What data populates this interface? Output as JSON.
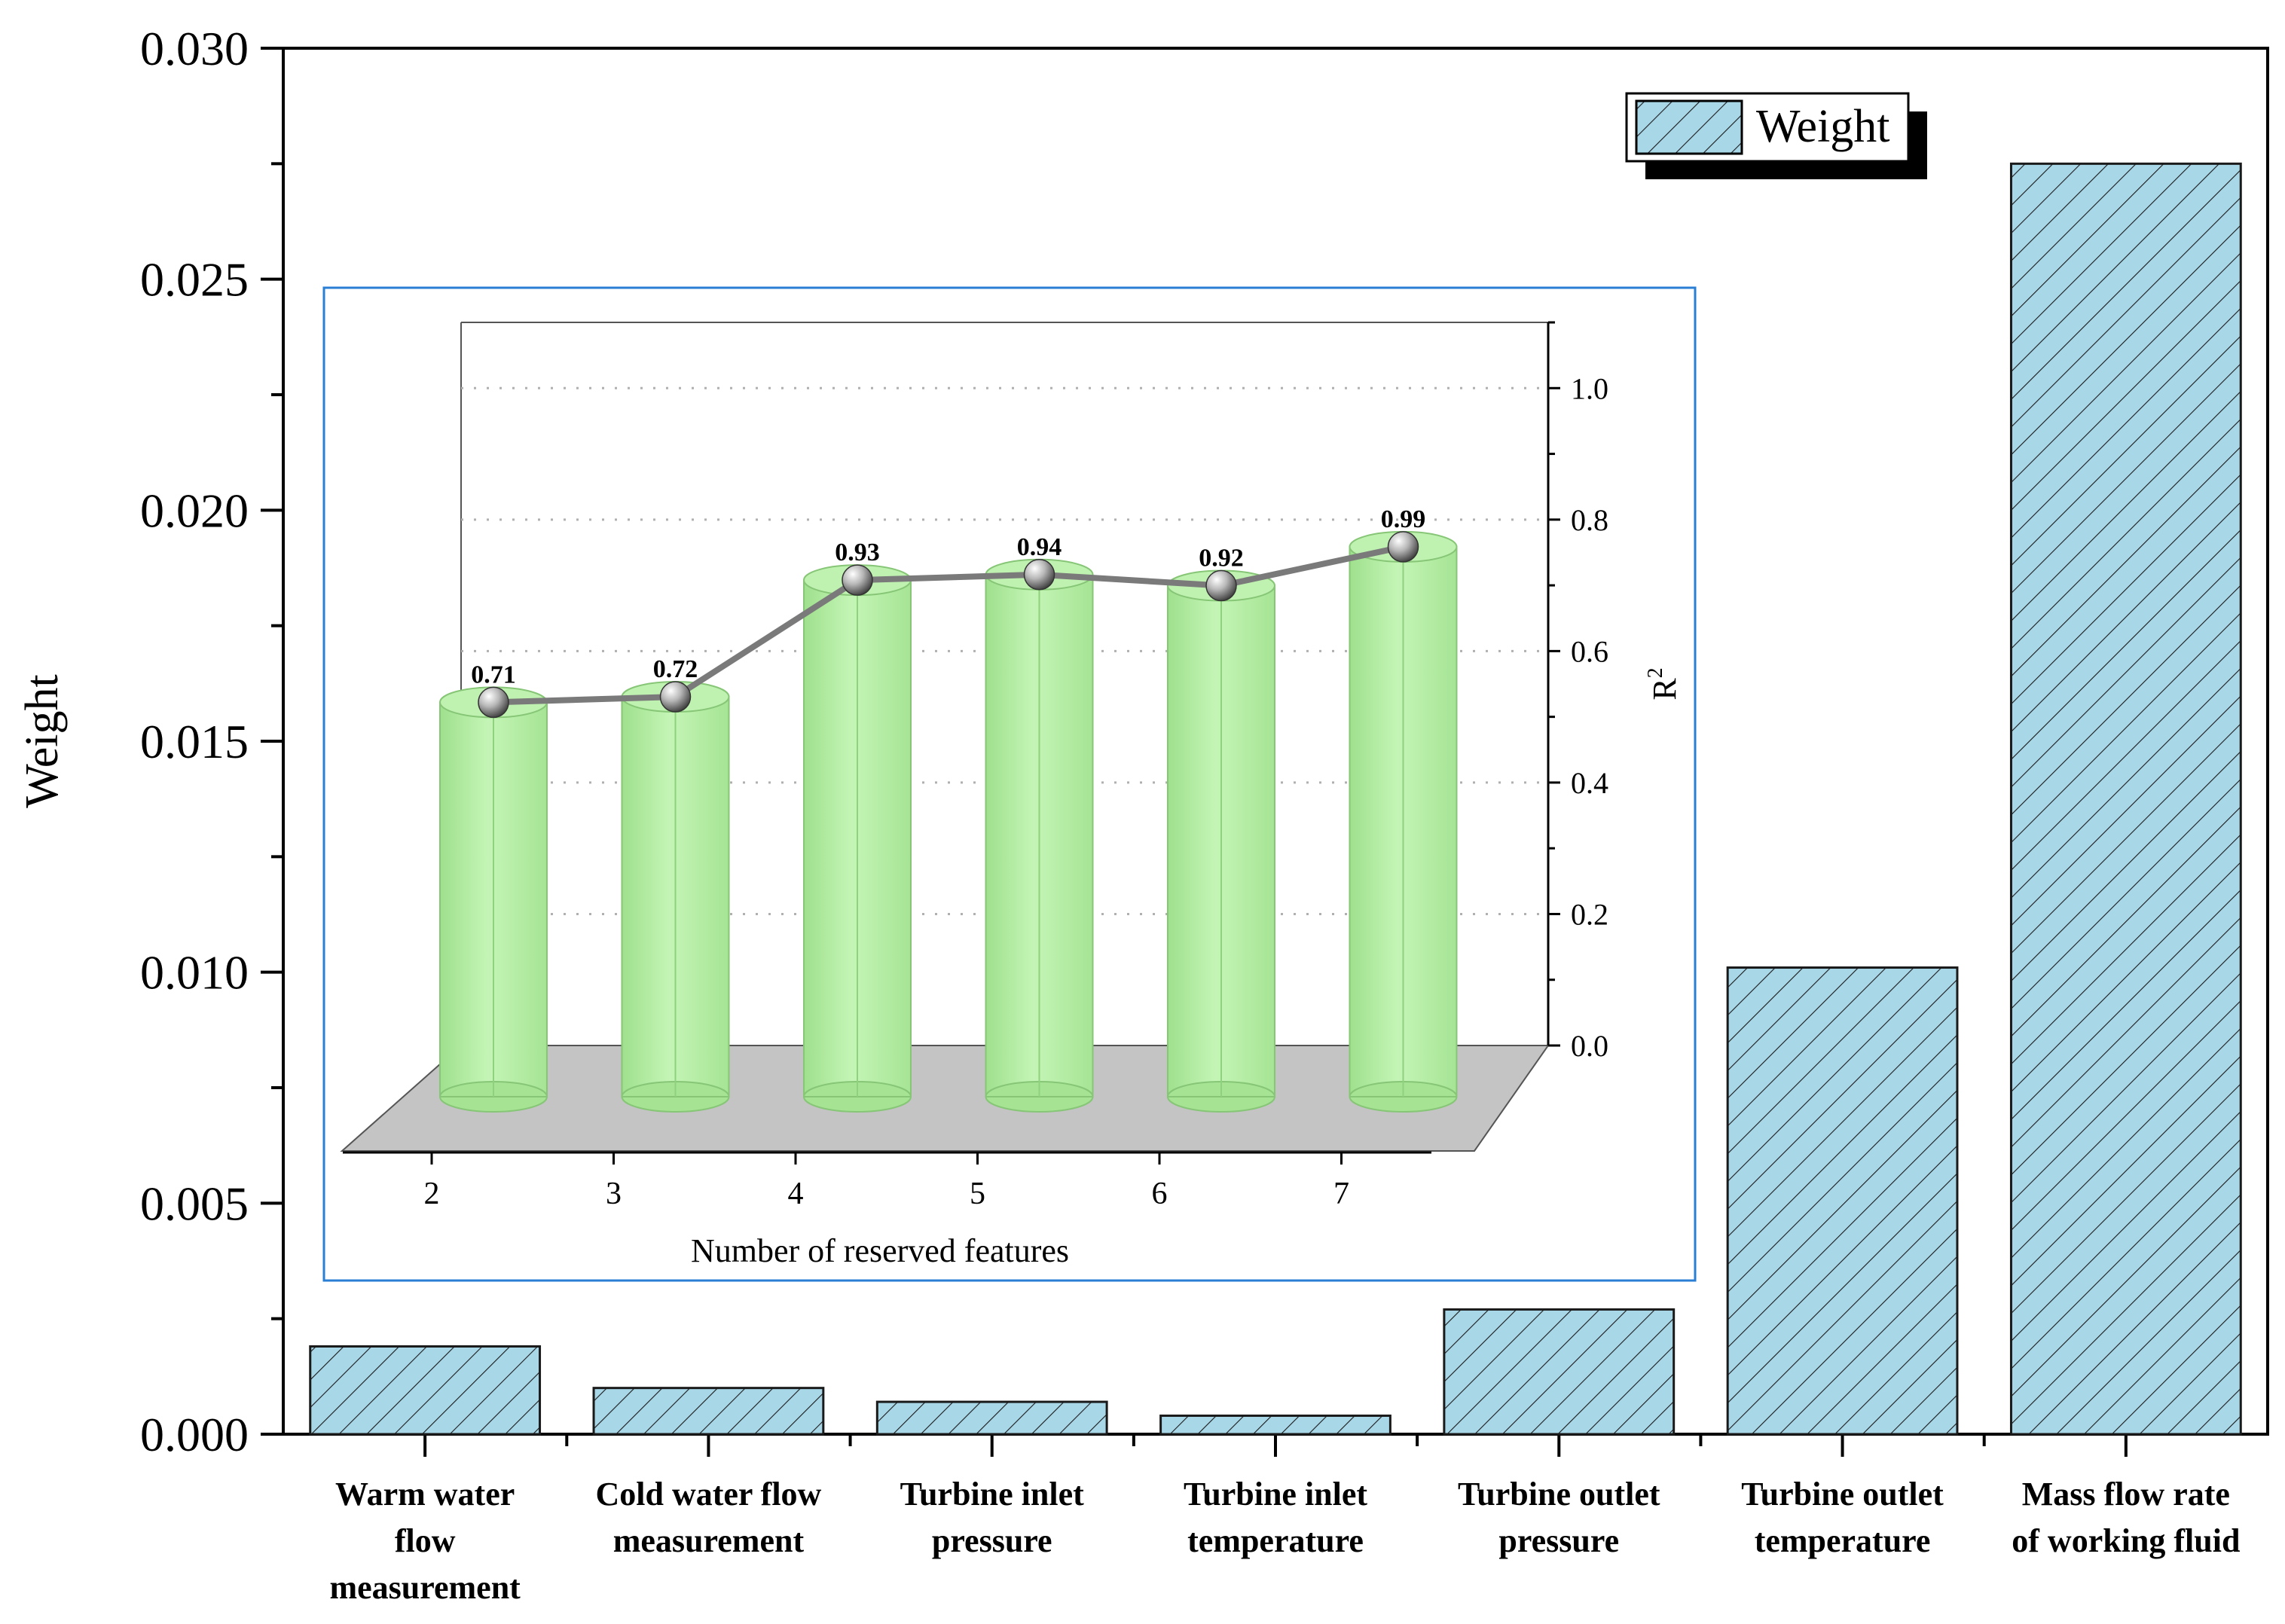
{
  "colors": {
    "main_bar_fill": "#a8d7e8",
    "main_bar_stroke": "#1a1a1a",
    "cylinder_fill": "#b4f0a4",
    "cylinder_stroke": "#86c676",
    "floor": "#c4c4c4",
    "r2_line": "#7a7a7a",
    "inset_frame": "#2a7fd4",
    "gridline": "#b0b0b0"
  },
  "chart_data": [
    {
      "type": "bar",
      "title": "",
      "xlabel": "",
      "ylabel": "Weight",
      "ylim": [
        0,
        0.03
      ],
      "yticks": [
        "0.000",
        "0.005",
        "0.010",
        "0.015",
        "0.020",
        "0.025",
        "0.030"
      ],
      "pattern": "diagonal hatch",
      "legend": {
        "label": "Weight",
        "position": "top-right"
      },
      "categories": [
        [
          "Warm water",
          "flow",
          "measurement"
        ],
        [
          "Cold water flow",
          "measurement"
        ],
        [
          "Turbine inlet",
          "pressure"
        ],
        [
          "Turbine inlet",
          "temperature"
        ],
        [
          "Turbine outlet",
          "pressure"
        ],
        [
          "Turbine outlet",
          "temperature"
        ],
        [
          "Mass flow rate",
          "of working fluid"
        ]
      ],
      "values": [
        0.0019,
        0.001,
        0.0007,
        0.0004,
        0.0027,
        0.0101,
        0.0275
      ]
    },
    {
      "type": "bar",
      "style": "3D cylinders with overlaid line and sphere markers",
      "inset": true,
      "xlabel": "Number of reserved features",
      "ylabel": "R",
      "ylabel_superscript": "2",
      "y_axis_side": "right",
      "ylim": [
        0,
        1.1
      ],
      "yticks": [
        "0.0",
        "0.2",
        "0.4",
        "0.6",
        "0.8",
        "1.0"
      ],
      "grid": "dotted horizontal",
      "categories": [
        "2",
        "3",
        "4",
        "5",
        "6",
        "7"
      ],
      "values": [
        0.71,
        0.72,
        0.93,
        0.94,
        0.92,
        0.99
      ],
      "data_labels": [
        "0.71",
        "0.72",
        "0.93",
        "0.94",
        "0.92",
        "0.99"
      ]
    }
  ]
}
